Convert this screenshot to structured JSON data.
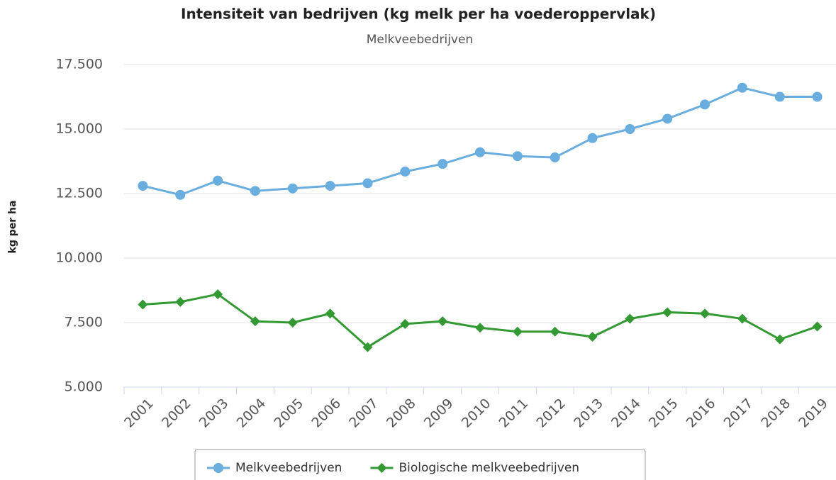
{
  "chart_data": {
    "type": "line",
    "title": "Intensiteit van bedrijven (kg melk per ha voederoppervlak)",
    "subtitle": "Melkveebedrijven",
    "y_label": "kg per ha",
    "categories": [
      "2001",
      "2002",
      "2003",
      "2004",
      "2005",
      "2006",
      "2007",
      "2008",
      "2009",
      "2010",
      "2011",
      "2012",
      "2013",
      "2014",
      "2015",
      "2016",
      "2017",
      "2018",
      "2019"
    ],
    "series": [
      {
        "name": "Melkveebedrijven",
        "color": "#6aaee0",
        "marker": "circle",
        "values": [
          12800,
          12450,
          13000,
          12600,
          12700,
          12800,
          12900,
          13350,
          13650,
          14100,
          13950,
          13900,
          14650,
          15000,
          15400,
          15950,
          16600,
          16250,
          16250
        ]
      },
      {
        "name": "Biologische melkveebedrijven",
        "color": "#339933",
        "marker": "diamond",
        "values": [
          8200,
          8300,
          8600,
          7550,
          7500,
          7850,
          6550,
          7450,
          7550,
          7300,
          7150,
          7150,
          6950,
          7650,
          7900,
          7850,
          7650,
          6850,
          7350
        ]
      }
    ],
    "ylim": [
      5000,
      17500
    ],
    "yticks": [
      {
        "value": 5000,
        "label": "5.000"
      },
      {
        "value": 7500,
        "label": "7.500"
      },
      {
        "value": 10000,
        "label": "10.000"
      },
      {
        "value": 12500,
        "label": "12.500"
      },
      {
        "value": 15000,
        "label": "15.000"
      },
      {
        "value": 17500,
        "label": "17.500"
      }
    ],
    "grid": true,
    "legend": "bottom"
  }
}
